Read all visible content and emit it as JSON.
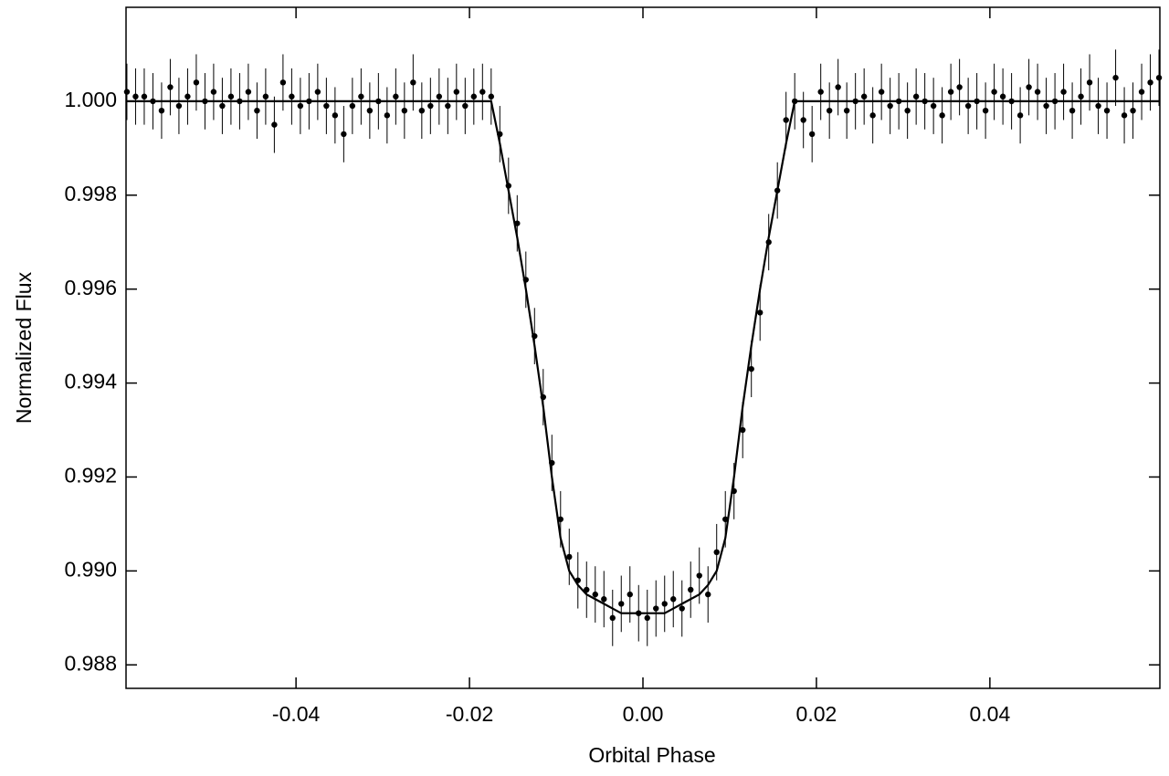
{
  "chart_data": {
    "type": "scatter",
    "x_label": "Orbital Phase",
    "y_label": "Normalized Flux",
    "xlim": [
      -0.0596,
      0.0596
    ],
    "ylim": [
      0.9875,
      1.002
    ],
    "xticks": [
      -0.04,
      -0.02,
      {
        "value": 0,
        "label": "0.00"
      },
      0.02,
      0.04
    ],
    "yticks": [
      0.988,
      {
        "value": 0.99,
        "label": "0.990"
      },
      0.992,
      0.994,
      0.996,
      0.998,
      {
        "value": 1,
        "label": "1.000"
      }
    ],
    "points": {
      "color": "#000000",
      "yerr": 0.0006,
      "x": [
        -0.0595,
        -0.0585,
        -0.0575,
        -0.0565,
        -0.0555,
        -0.0545,
        -0.0535,
        -0.0525,
        -0.0515,
        -0.0505,
        -0.0495,
        -0.0485,
        -0.0475,
        -0.0465,
        -0.0455,
        -0.0445,
        -0.0435,
        -0.0425,
        -0.0415,
        -0.0405,
        -0.0395,
        -0.0385,
        -0.0375,
        -0.0365,
        -0.0355,
        -0.0345,
        -0.0335,
        -0.0325,
        -0.0315,
        -0.0305,
        -0.0295,
        -0.0285,
        -0.0275,
        -0.0265,
        -0.0255,
        -0.0245,
        -0.0235,
        -0.0225,
        -0.0215,
        -0.0205,
        -0.0195,
        -0.0185,
        -0.0175,
        -0.0165,
        -0.0155,
        -0.0145,
        -0.0135,
        -0.0125,
        -0.0115,
        -0.0105,
        -0.0095,
        -0.0085,
        -0.0075,
        -0.0065,
        -0.0055,
        -0.0045,
        -0.0035,
        -0.0025,
        -0.0015,
        -0.0005,
        0.0005,
        0.0015,
        0.0025,
        0.0035,
        0.0045,
        0.0055,
        0.0065,
        0.0075,
        0.0085,
        0.0095,
        0.0105,
        0.0115,
        0.0125,
        0.0135,
        0.0145,
        0.0155,
        0.0165,
        0.0175,
        0.0185,
        0.0195,
        0.0205,
        0.0215,
        0.0225,
        0.0235,
        0.0245,
        0.0255,
        0.0265,
        0.0275,
        0.0285,
        0.0295,
        0.0305,
        0.0315,
        0.0325,
        0.0335,
        0.0345,
        0.0355,
        0.0365,
        0.0375,
        0.0385,
        0.0395,
        0.0405,
        0.0415,
        0.0425,
        0.0435,
        0.0445,
        0.0455,
        0.0465,
        0.0475,
        0.0485,
        0.0495,
        0.0505,
        0.0515,
        0.0525,
        0.0535,
        0.0545,
        0.0555,
        0.0565,
        0.0575,
        0.0585,
        0.0595
      ],
      "values": [
        1.0002,
        1.0001,
        1.0001,
        1.0,
        0.9998,
        1.0003,
        0.9999,
        1.0001,
        1.0004,
        1.0,
        1.0002,
        0.9999,
        1.0001,
        1.0,
        1.0002,
        0.9998,
        1.0001,
        0.9995,
        1.0004,
        1.0001,
        0.9999,
        1.0,
        1.0002,
        0.9999,
        0.9997,
        0.9993,
        0.9999,
        1.0001,
        0.9998,
        1.0,
        0.9997,
        1.0001,
        0.9998,
        1.0004,
        0.9998,
        0.9999,
        1.0001,
        0.9999,
        1.0002,
        0.9999,
        1.0001,
        1.0002,
        1.0001,
        0.9993,
        0.9982,
        0.9974,
        0.9962,
        0.995,
        0.9937,
        0.9923,
        0.9911,
        0.9903,
        0.9898,
        0.9896,
        0.9895,
        0.9894,
        0.989,
        0.9893,
        0.9895,
        0.9891,
        0.989,
        0.9892,
        0.9893,
        0.9894,
        0.9892,
        0.9896,
        0.9899,
        0.9895,
        0.9904,
        0.9911,
        0.9917,
        0.993,
        0.9943,
        0.9955,
        0.997,
        0.9981,
        0.9996,
        1.0,
        0.9996,
        0.9993,
        1.0002,
        0.9998,
        1.0003,
        0.9998,
        1.0,
        1.0001,
        0.9997,
        1.0002,
        0.9999,
        1.0,
        0.9998,
        1.0001,
        1.0,
        0.9999,
        0.9997,
        1.0002,
        1.0003,
        0.9999,
        1.0,
        0.9998,
        1.0002,
        1.0001,
        1.0,
        0.9997,
        1.0003,
        1.0002,
        0.9999,
        1.0,
        1.0002,
        0.9998,
        1.0001,
        1.0004,
        0.9999,
        0.9998,
        1.0005,
        0.9997,
        0.9998,
        1.0002,
        1.0004,
        1.0005
      ]
    },
    "model": {
      "color": "#000000",
      "x": [
        -0.0596,
        -0.0175,
        -0.0165,
        -0.0155,
        -0.0145,
        -0.0135,
        -0.0125,
        -0.0115,
        -0.0105,
        -0.0095,
        -0.0085,
        -0.0075,
        -0.0065,
        -0.0055,
        -0.0045,
        -0.0035,
        -0.0025,
        -0.0015,
        -0.0005,
        0.0005,
        0.0015,
        0.0025,
        0.0035,
        0.0045,
        0.0055,
        0.0065,
        0.0075,
        0.0085,
        0.0095,
        0.0105,
        0.0115,
        0.0125,
        0.0135,
        0.0145,
        0.0155,
        0.0165,
        0.0175,
        0.0596
      ],
      "values": [
        1.0,
        1.0,
        0.9991,
        0.9981,
        0.9971,
        0.996,
        0.9948,
        0.9935,
        0.992,
        0.9907,
        0.99,
        0.9897,
        0.9895,
        0.9894,
        0.9893,
        0.9892,
        0.9891,
        0.9891,
        0.9891,
        0.9891,
        0.9891,
        0.9891,
        0.9892,
        0.9893,
        0.9894,
        0.9895,
        0.9897,
        0.99,
        0.9907,
        0.992,
        0.9935,
        0.9948,
        0.996,
        0.9971,
        0.9981,
        0.9991,
        1.0,
        1.0
      ]
    }
  }
}
